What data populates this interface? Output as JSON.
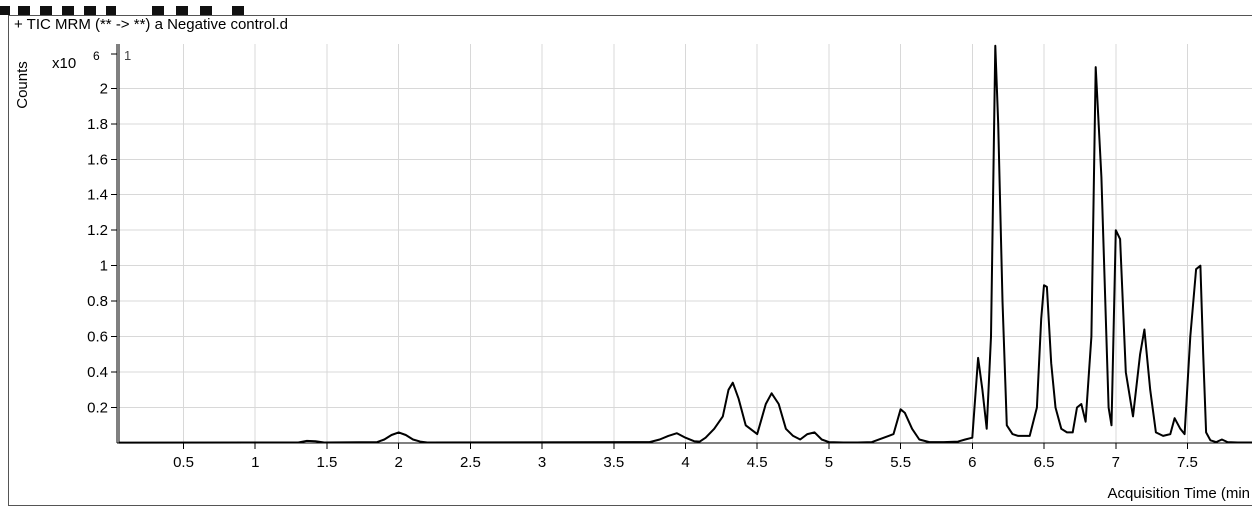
{
  "chart_data": {
    "type": "line",
    "title": "+ TIC MRM (** -> **) a Negative control.d",
    "ylabel": "Counts",
    "xlabel": "Acquisition Time (min",
    "y_multiplier": "x10",
    "y_exponent": "6",
    "panel_label": "1",
    "xlim": [
      0.05,
      7.95
    ],
    "ylim": [
      0,
      2.25
    ],
    "grid": true,
    "x_ticks": [
      0.5,
      1,
      1.5,
      2,
      2.5,
      3,
      3.5,
      4,
      4.5,
      5,
      5.5,
      6,
      6.5,
      7,
      7.5
    ],
    "x_tick_labels": [
      "0.5",
      "1",
      "1.5",
      "2",
      "2.5",
      "3",
      "3.5",
      "4",
      "4.5",
      "5",
      "5.5",
      "6",
      "6.5",
      "7",
      "7.5"
    ],
    "y_ticks": [
      0.2,
      0.4,
      0.6,
      0.8,
      1.0,
      1.2,
      1.4,
      1.6,
      1.8,
      2.0
    ],
    "y_tick_labels": [
      "0.2",
      "0.4",
      "0.6",
      "0.8",
      "1",
      "1.2",
      "1.4",
      "1.6",
      "1.8",
      "2"
    ],
    "series": [
      {
        "x": [
          0.05,
          1.3,
          1.36,
          1.42,
          1.48,
          1.85,
          1.9,
          1.95,
          2.0,
          2.05,
          2.1,
          2.15,
          2.2,
          3.75,
          3.82,
          3.88,
          3.94,
          4.0,
          4.06,
          4.1,
          4.14,
          4.2,
          4.26,
          4.3,
          4.33,
          4.37,
          4.42,
          4.5,
          4.56,
          4.6,
          4.65,
          4.7,
          4.75,
          4.8,
          4.85,
          4.9,
          4.95,
          5.0,
          5.1,
          5.2,
          5.3,
          5.45,
          5.5,
          5.53,
          5.58,
          5.63,
          5.7,
          5.8,
          5.9,
          5.95,
          6.0,
          6.04,
          6.07,
          6.1,
          6.13,
          6.16,
          6.18,
          6.21,
          6.24,
          6.28,
          6.32,
          6.4,
          6.45,
          6.48,
          6.5,
          6.52,
          6.55,
          6.58,
          6.62,
          6.66,
          6.7,
          6.73,
          6.76,
          6.79,
          6.83,
          6.86,
          6.9,
          6.95,
          6.97,
          7.0,
          7.03,
          7.07,
          7.12,
          7.17,
          7.2,
          7.24,
          7.28,
          7.33,
          7.38,
          7.41,
          7.45,
          7.48,
          7.52,
          7.56,
          7.59,
          7.61,
          7.63,
          7.66,
          7.7,
          7.74,
          7.78,
          7.85,
          7.95
        ],
        "y": [
          0.002,
          0.003,
          0.012,
          0.01,
          0.003,
          0.005,
          0.02,
          0.045,
          0.06,
          0.045,
          0.02,
          0.008,
          0.003,
          0.005,
          0.02,
          0.04,
          0.055,
          0.03,
          0.01,
          0.008,
          0.03,
          0.08,
          0.15,
          0.3,
          0.34,
          0.25,
          0.1,
          0.05,
          0.22,
          0.28,
          0.22,
          0.08,
          0.04,
          0.02,
          0.05,
          0.06,
          0.02,
          0.005,
          0.003,
          0.003,
          0.005,
          0.05,
          0.19,
          0.17,
          0.08,
          0.02,
          0.005,
          0.005,
          0.008,
          0.02,
          0.03,
          0.48,
          0.3,
          0.08,
          0.6,
          2.24,
          1.8,
          0.8,
          0.1,
          0.05,
          0.04,
          0.04,
          0.2,
          0.7,
          0.89,
          0.88,
          0.45,
          0.2,
          0.08,
          0.06,
          0.06,
          0.2,
          0.22,
          0.12,
          0.6,
          2.12,
          1.5,
          0.2,
          0.1,
          1.2,
          1.15,
          0.4,
          0.15,
          0.5,
          0.64,
          0.3,
          0.06,
          0.04,
          0.05,
          0.14,
          0.08,
          0.05,
          0.6,
          0.98,
          1.0,
          0.5,
          0.06,
          0.015,
          0.005,
          0.02,
          0.005,
          0.003,
          0.003
        ]
      }
    ]
  }
}
